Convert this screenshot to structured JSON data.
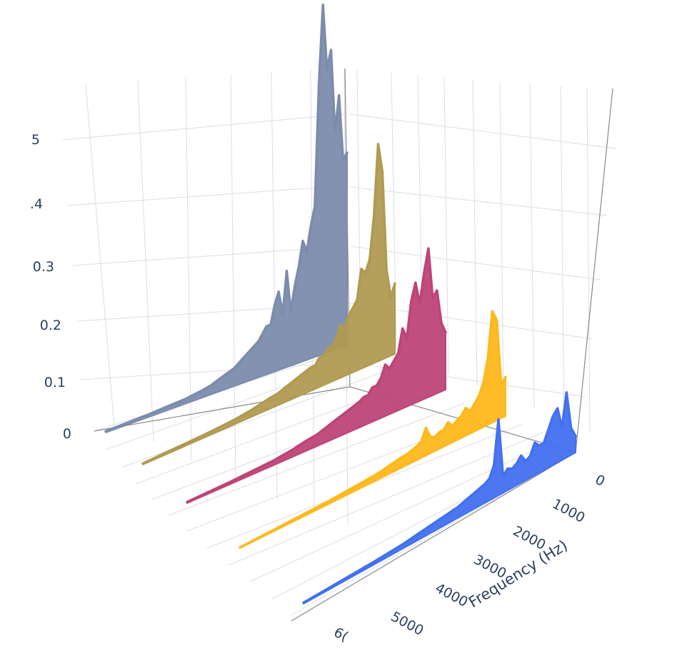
{
  "chart_data": {
    "type": "line",
    "title": "",
    "xlabel": "Frequency (Hz)",
    "ylabel": "",
    "zlabel": "",
    "freq_axis_ticks": [
      "0",
      "1000",
      "2000",
      "3000",
      "4000",
      "5000",
      "6000"
    ],
    "freq_axis_visible_ticks": [
      "0",
      "1000",
      "2000",
      "3000",
      "4000",
      "5000",
      "6("
    ],
    "amp_axis_ticks": [
      "0",
      "0.1",
      "0.2",
      "0.3",
      ".4",
      "5"
    ],
    "freq_range": [
      0,
      6000
    ],
    "amp_range": [
      0,
      0.5
    ],
    "grid": true,
    "legend": "none",
    "series": [
      {
        "color": "#7b8cac",
        "points": [
          [
            0,
            0.32
          ],
          [
            100,
            0.31
          ],
          [
            200,
            0.42
          ],
          [
            300,
            0.36
          ],
          [
            400,
            0.5
          ],
          [
            500,
            0.47
          ],
          [
            600,
            0.58
          ],
          [
            700,
            0.45
          ],
          [
            800,
            0.25
          ],
          [
            900,
            0.22
          ],
          [
            1000,
            0.18
          ],
          [
            1100,
            0.2
          ],
          [
            1200,
            0.16
          ],
          [
            1300,
            0.13
          ],
          [
            1400,
            0.09
          ],
          [
            1500,
            0.16
          ],
          [
            1600,
            0.09
          ],
          [
            1700,
            0.13
          ],
          [
            1800,
            0.11
          ],
          [
            1900,
            0.08
          ],
          [
            2000,
            0.08
          ],
          [
            2200,
            0.06
          ],
          [
            2400,
            0.05
          ],
          [
            2600,
            0.04
          ],
          [
            2800,
            0.03
          ],
          [
            3000,
            0.025
          ],
          [
            3200,
            0.02
          ],
          [
            3400,
            0.015
          ],
          [
            3600,
            0.012
          ],
          [
            3800,
            0.01
          ],
          [
            4000,
            0.008
          ],
          [
            4500,
            0.006
          ],
          [
            5000,
            0.004
          ],
          [
            5500,
            0.003
          ],
          [
            6000,
            0.002
          ]
        ]
      },
      {
        "color": "#b09a52",
        "points": [
          [
            0,
            0.12
          ],
          [
            100,
            0.1
          ],
          [
            200,
            0.15
          ],
          [
            300,
            0.32
          ],
          [
            400,
            0.37
          ],
          [
            500,
            0.25
          ],
          [
            600,
            0.18
          ],
          [
            700,
            0.16
          ],
          [
            800,
            0.17
          ],
          [
            900,
            0.12
          ],
          [
            1000,
            0.11
          ],
          [
            1100,
            0.1
          ],
          [
            1200,
            0.08
          ],
          [
            1300,
            0.09
          ],
          [
            1400,
            0.07
          ],
          [
            1500,
            0.06
          ],
          [
            1600,
            0.06
          ],
          [
            1700,
            0.05
          ],
          [
            1800,
            0.05
          ],
          [
            1900,
            0.04
          ],
          [
            2000,
            0.04
          ],
          [
            2200,
            0.035
          ],
          [
            2400,
            0.03
          ],
          [
            2600,
            0.025
          ],
          [
            2800,
            0.02
          ],
          [
            3000,
            0.018
          ],
          [
            3200,
            0.015
          ],
          [
            3400,
            0.012
          ],
          [
            3600,
            0.01
          ],
          [
            3800,
            0.008
          ],
          [
            4000,
            0.007
          ],
          [
            4500,
            0.005
          ],
          [
            5000,
            0.004
          ],
          [
            5500,
            0.003
          ],
          [
            6000,
            0.002
          ]
        ]
      },
      {
        "color": "#bd4477",
        "points": [
          [
            0,
            0.1
          ],
          [
            100,
            0.12
          ],
          [
            200,
            0.18
          ],
          [
            300,
            0.17
          ],
          [
            400,
            0.26
          ],
          [
            500,
            0.22
          ],
          [
            600,
            0.17
          ],
          [
            700,
            0.21
          ],
          [
            800,
            0.18
          ],
          [
            900,
            0.12
          ],
          [
            1000,
            0.14
          ],
          [
            1100,
            0.1
          ],
          [
            1200,
            0.09
          ],
          [
            1300,
            0.08
          ],
          [
            1400,
            0.09
          ],
          [
            1500,
            0.07
          ],
          [
            1600,
            0.06
          ],
          [
            1700,
            0.06
          ],
          [
            1800,
            0.05
          ],
          [
            1900,
            0.05
          ],
          [
            2000,
            0.045
          ],
          [
            2200,
            0.04
          ],
          [
            2400,
            0.035
          ],
          [
            2600,
            0.03
          ],
          [
            2800,
            0.025
          ],
          [
            3000,
            0.02
          ],
          [
            3200,
            0.018
          ],
          [
            3400,
            0.015
          ],
          [
            3600,
            0.012
          ],
          [
            3800,
            0.01
          ],
          [
            4000,
            0.008
          ],
          [
            4500,
            0.006
          ],
          [
            5000,
            0.004
          ],
          [
            5500,
            0.003
          ],
          [
            6000,
            0.002
          ]
        ]
      },
      {
        "color": "#fdb81c",
        "points": [
          [
            0,
            0.07
          ],
          [
            100,
            0.06
          ],
          [
            200,
            0.18
          ],
          [
            300,
            0.2
          ],
          [
            400,
            0.12
          ],
          [
            500,
            0.08
          ],
          [
            600,
            0.06
          ],
          [
            700,
            0.05
          ],
          [
            800,
            0.04
          ],
          [
            900,
            0.05
          ],
          [
            1000,
            0.04
          ],
          [
            1100,
            0.035
          ],
          [
            1200,
            0.03
          ],
          [
            1300,
            0.04
          ],
          [
            1400,
            0.03
          ],
          [
            1500,
            0.03
          ],
          [
            1600,
            0.025
          ],
          [
            1700,
            0.03
          ],
          [
            1800,
            0.05
          ],
          [
            1900,
            0.03
          ],
          [
            2000,
            0.025
          ],
          [
            2200,
            0.02
          ],
          [
            2400,
            0.018
          ],
          [
            2600,
            0.015
          ],
          [
            2800,
            0.012
          ],
          [
            3000,
            0.01
          ],
          [
            3200,
            0.009
          ],
          [
            3400,
            0.008
          ],
          [
            3600,
            0.007
          ],
          [
            3800,
            0.006
          ],
          [
            4000,
            0.005
          ],
          [
            4500,
            0.004
          ],
          [
            5000,
            0.003
          ],
          [
            5500,
            0.002
          ],
          [
            6000,
            0.001
          ]
        ]
      },
      {
        "color": "#4270f0",
        "points": [
          [
            0,
            0.03
          ],
          [
            100,
            0.05
          ],
          [
            200,
            0.12
          ],
          [
            300,
            0.06
          ],
          [
            400,
            0.1
          ],
          [
            500,
            0.09
          ],
          [
            600,
            0.07
          ],
          [
            700,
            0.05
          ],
          [
            800,
            0.05
          ],
          [
            900,
            0.06
          ],
          [
            1000,
            0.04
          ],
          [
            1100,
            0.035
          ],
          [
            1200,
            0.05
          ],
          [
            1300,
            0.04
          ],
          [
            1400,
            0.035
          ],
          [
            1500,
            0.04
          ],
          [
            1600,
            0.03
          ],
          [
            1700,
            0.14
          ],
          [
            1800,
            0.06
          ],
          [
            1900,
            0.04
          ],
          [
            2000,
            0.035
          ],
          [
            2200,
            0.03
          ],
          [
            2400,
            0.025
          ],
          [
            2600,
            0.02
          ],
          [
            2800,
            0.018
          ],
          [
            3000,
            0.016
          ],
          [
            3200,
            0.014
          ],
          [
            3400,
            0.012
          ],
          [
            3600,
            0.01
          ],
          [
            3800,
            0.008
          ],
          [
            4000,
            0.007
          ],
          [
            4500,
            0.005
          ],
          [
            5000,
            0.004
          ],
          [
            5500,
            0.003
          ],
          [
            6000,
            0.002
          ]
        ]
      }
    ]
  }
}
